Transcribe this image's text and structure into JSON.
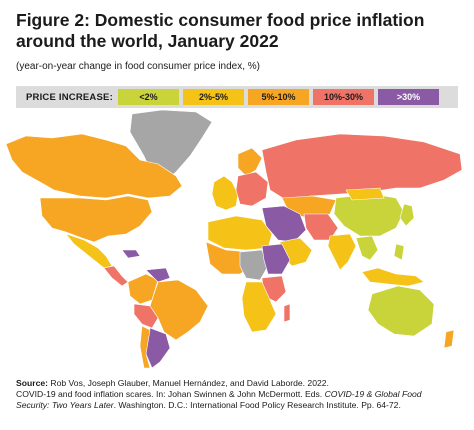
{
  "title": "Figure 2: Domestic consumer food price inflation around the world, January 2022",
  "subtitle": "(year-on-year change in food consumer price index, %)",
  "legend": {
    "label": "PRICE INCREASE:",
    "items": [
      {
        "label": "<2%",
        "color": "#c9d43a"
      },
      {
        "label": "2%-5%",
        "color": "#f5c218"
      },
      {
        "label": "5%-10%",
        "color": "#f6a623"
      },
      {
        "label": "10%-30%",
        "color": "#ef7366"
      },
      {
        "label": ">30%",
        "color": "#8a5aa5"
      }
    ]
  },
  "no_data_color": "#a6a6a6",
  "source": {
    "label": "Source:",
    "line1": "Rob Vos, Joseph Glauber, Manuel Hernández, and David Laborde. 2022.",
    "line2": "COVID-19 and food inflation scares. In: Johan Swinnen & John McDermott. Eds.",
    "book_title_a": "COVID-19 & Global Food",
    "book_title_b": "Security: Two Years Later",
    "line3_rest": ". Washington. D.C.: International Food Policy Research Institute. Pp. 64-72."
  }
}
